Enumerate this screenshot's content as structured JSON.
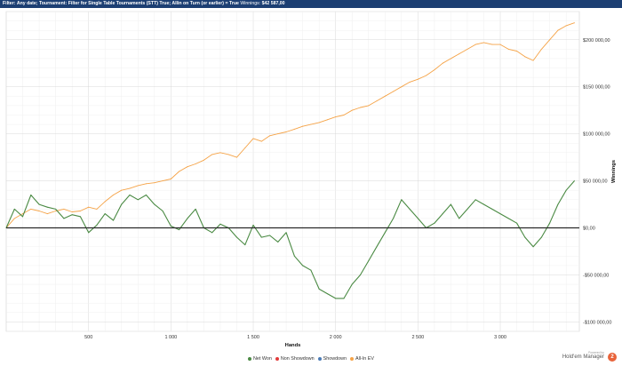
{
  "filter": {
    "prefix": "Filter:",
    "text": "Any date; Tournament: Filter for Single Table Tournaments (STT) True; Allin on Turn (or earlier) = True",
    "winnings_label": "Winnings:",
    "winnings_value": "$42 587,00"
  },
  "branding": {
    "powered_by": "Powered by",
    "name": "Hold'em Manager",
    "logo_text": "2"
  },
  "chart_data": {
    "type": "line",
    "xlabel": "Hands",
    "ylabel": "Winnings",
    "xlim": [
      0,
      3480
    ],
    "ylim": [
      -110000,
      230000
    ],
    "x_ticks": [
      500,
      1000,
      1500,
      2000,
      2500,
      3000
    ],
    "x_tick_labels": [
      "500",
      "1 000",
      "1 500",
      "2 000",
      "2 500",
      "3 000"
    ],
    "y_ticks": [
      -100000,
      -50000,
      0,
      50000,
      100000,
      150000,
      200000
    ],
    "y_tick_labels": [
      "-$100 000,00",
      "-$50 000,00",
      "$0,00",
      "$50 000,00",
      "$100 000,00",
      "$150 000,00",
      "$200 000,00"
    ],
    "grid": true,
    "legend_position": "bottom",
    "legend": [
      {
        "name": "Net Won",
        "color": "#4a8a43"
      },
      {
        "name": "Non Showdown",
        "color": "#e23b3b"
      },
      {
        "name": "Showdown",
        "color": "#4a7ab5"
      },
      {
        "name": "All-In EV",
        "color": "#f5a347"
      }
    ],
    "series": [
      {
        "name": "Net Won",
        "color": "#4a8a43",
        "x": [
          0,
          50,
          100,
          150,
          200,
          250,
          300,
          350,
          400,
          450,
          500,
          550,
          600,
          650,
          700,
          750,
          800,
          850,
          900,
          950,
          1000,
          1050,
          1100,
          1150,
          1200,
          1250,
          1300,
          1350,
          1400,
          1450,
          1500,
          1550,
          1600,
          1650,
          1700,
          1750,
          1800,
          1850,
          1900,
          1950,
          2000,
          2050,
          2100,
          2150,
          2200,
          2250,
          2300,
          2350,
          2400,
          2450,
          2500,
          2550,
          2600,
          2650,
          2700,
          2750,
          2800,
          2850,
          2900,
          2950,
          3000,
          3050,
          3100,
          3150,
          3200,
          3250,
          3300,
          3350,
          3400,
          3450
        ],
        "y": [
          0,
          20000,
          12000,
          35000,
          25000,
          22000,
          20000,
          10000,
          14000,
          12000,
          -5000,
          3000,
          15000,
          8000,
          25000,
          35000,
          30000,
          35000,
          25000,
          18000,
          2000,
          -2000,
          10000,
          20000,
          0,
          -5000,
          4000,
          0,
          -10000,
          -18000,
          3000,
          -10000,
          -8000,
          -15000,
          -5000,
          -30000,
          -40000,
          -45000,
          -65000,
          -70000,
          -75000,
          -75000,
          -60000,
          -50000,
          -35000,
          -20000,
          -5000,
          10000,
          30000,
          20000,
          10000,
          0,
          5000,
          15000,
          25000,
          10000,
          20000,
          30000,
          25000,
          20000,
          15000,
          10000,
          5000,
          -10000,
          -20000,
          -10000,
          5000,
          25000,
          40000,
          50000
        ]
      },
      {
        "name": "All-In EV",
        "color": "#f5a347",
        "x": [
          0,
          50,
          100,
          150,
          200,
          250,
          300,
          350,
          400,
          450,
          500,
          550,
          600,
          650,
          700,
          750,
          800,
          850,
          900,
          950,
          1000,
          1050,
          1100,
          1150,
          1200,
          1250,
          1300,
          1350,
          1400,
          1450,
          1500,
          1550,
          1600,
          1650,
          1700,
          1750,
          1800,
          1850,
          1900,
          1950,
          2000,
          2050,
          2100,
          2150,
          2200,
          2250,
          2300,
          2350,
          2400,
          2450,
          2500,
          2550,
          2600,
          2650,
          2700,
          2750,
          2800,
          2850,
          2900,
          2950,
          3000,
          3050,
          3100,
          3150,
          3200,
          3250,
          3300,
          3350,
          3400,
          3450
        ],
        "y": [
          0,
          10000,
          15000,
          20000,
          18000,
          15000,
          18000,
          20000,
          17000,
          18000,
          22000,
          20000,
          28000,
          35000,
          40000,
          42000,
          45000,
          47000,
          48000,
          50000,
          52000,
          60000,
          65000,
          68000,
          72000,
          78000,
          80000,
          78000,
          75000,
          85000,
          95000,
          92000,
          98000,
          100000,
          102000,
          105000,
          108000,
          110000,
          112000,
          115000,
          118000,
          120000,
          125000,
          128000,
          130000,
          135000,
          140000,
          145000,
          150000,
          155000,
          158000,
          162000,
          168000,
          175000,
          180000,
          185000,
          190000,
          195000,
          197000,
          195000,
          195000,
          190000,
          188000,
          182000,
          178000,
          190000,
          200000,
          210000,
          215000,
          218000
        ]
      }
    ]
  }
}
